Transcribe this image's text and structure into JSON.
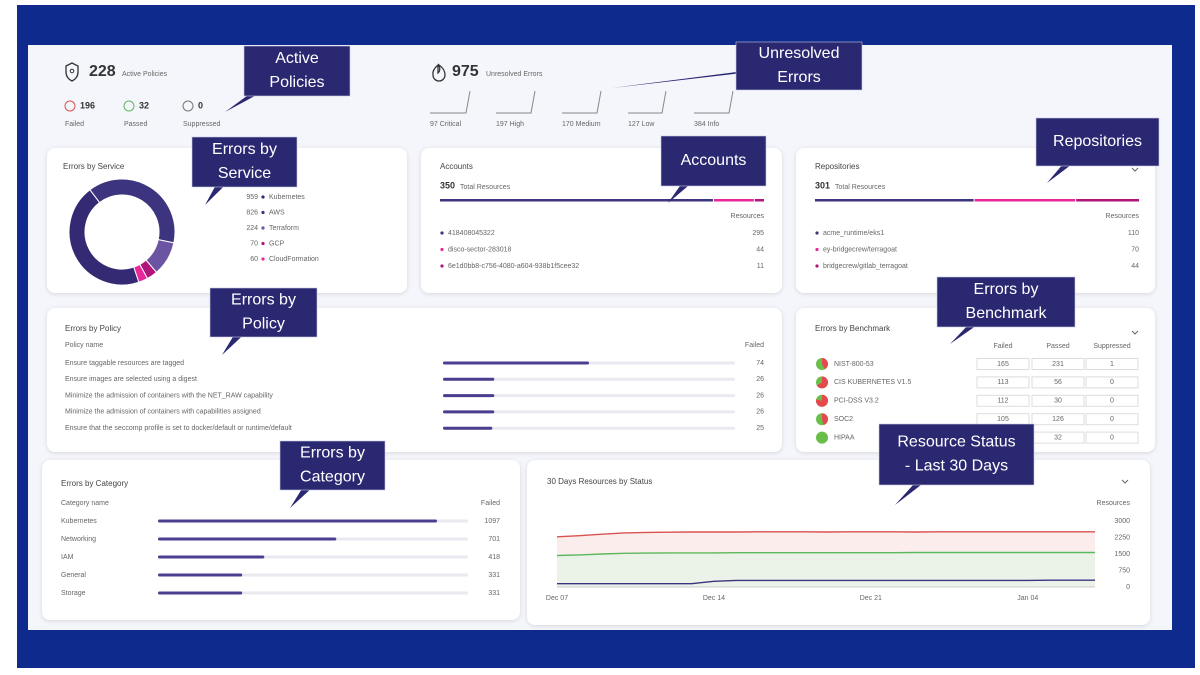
{
  "summary": {
    "policies": {
      "value": 228,
      "label": "Active Policies",
      "stats": [
        {
          "value": 196,
          "label": "Failed"
        },
        {
          "value": 32,
          "label": "Passed"
        },
        {
          "value": 0,
          "label": "Suppressed"
        }
      ]
    },
    "errors": {
      "value": 975,
      "label": "Unresolved Errors",
      "levels": [
        "97 Critical",
        "197 High",
        "170 Medium",
        "127 Low",
        "384 Info"
      ]
    }
  },
  "services": {
    "title": "Errors by Service",
    "items": [
      {
        "value": 959,
        "label": "Kubernetes",
        "color": "#332a73"
      },
      {
        "value": 826,
        "label": "AWS",
        "color": "#3d347f"
      },
      {
        "value": 224,
        "label": "Terraform",
        "color": "#6b55a3"
      },
      {
        "value": 70,
        "label": "GCP",
        "color": "#b0167a"
      },
      {
        "value": 60,
        "label": "CloudFormation",
        "color": "#e8279b"
      }
    ]
  },
  "accounts": {
    "title": "Accounts",
    "total": 350,
    "total_label": "Total Resources",
    "column": "Resources",
    "rows": [
      {
        "name": "418408045322",
        "value": 295,
        "color": "#3d347f"
      },
      {
        "name": "disco-sector-283018",
        "value": 44,
        "color": "#e8279b"
      },
      {
        "name": "6e1d0bb8-c756-4080-a604-938b1f5cee32",
        "value": 11,
        "color": "#b0167a"
      }
    ]
  },
  "repositories": {
    "title": "Repositories",
    "total": 301,
    "total_label": "Total Resources",
    "column": "Resources",
    "rows": [
      {
        "name": "acme_runtime/eks1",
        "value": 110,
        "color": "#3d347f"
      },
      {
        "name": "ey-bridgecrew/terragoat",
        "value": 70,
        "color": "#e8279b"
      },
      {
        "name": "bridgecrew/gitlab_terragoat",
        "value": 44,
        "color": "#b0167a"
      }
    ]
  },
  "policies": {
    "title": "Errors by Policy",
    "column_name": "Policy name",
    "column_value": "Failed",
    "rows": [
      {
        "name": "Ensure taggable resources are tagged",
        "value": 74
      },
      {
        "name": "Ensure images are selected using a digest",
        "value": 26
      },
      {
        "name": "Minimize the admission of containers with the NET_RAW capability",
        "value": 26
      },
      {
        "name": "Minimize the admission of containers with capabilities assigned",
        "value": 26
      },
      {
        "name": "Ensure that the seccomp profile is set to docker/default or runtime/default",
        "value": 25
      }
    ]
  },
  "benchmarks": {
    "title": "Errors by Benchmark",
    "columns": [
      "Failed",
      "Passed",
      "Suppressed"
    ],
    "rows": [
      {
        "name": "NIST-800-53",
        "values": [
          165,
          231,
          1
        ]
      },
      {
        "name": "CIS KUBERNETES V1.5",
        "values": [
          113,
          56,
          0
        ]
      },
      {
        "name": "PCI-DSS V3.2",
        "values": [
          112,
          30,
          0
        ]
      },
      {
        "name": "SOC2",
        "values": [
          105,
          126,
          0
        ]
      },
      {
        "name": "HIPAA",
        "values": [
          null,
          32,
          0
        ]
      }
    ]
  },
  "categories": {
    "title": "Errors by Category",
    "column_name": "Category name",
    "column_value": "Failed",
    "rows": [
      {
        "name": "Kubernetes",
        "value": 1097
      },
      {
        "name": "Networking",
        "value": 701
      },
      {
        "name": "IAM",
        "value": 418
      },
      {
        "name": "General",
        "value": 331
      },
      {
        "name": "Storage",
        "value": 331
      }
    ]
  },
  "chart_data": {
    "type": "line",
    "title": "30 Days Resources by Status",
    "y_label": "Resources",
    "categories": [
      "Dec 07",
      null,
      null,
      null,
      null,
      null,
      null,
      "Dec 14",
      null,
      null,
      null,
      null,
      null,
      null,
      "Dec 21",
      null,
      null,
      null,
      null,
      null,
      null,
      "Jan 04",
      null,
      null,
      null
    ],
    "ylim": [
      0,
      3000
    ],
    "yticks": [
      0,
      750,
      1500,
      2250,
      3000
    ],
    "series": [
      {
        "color": "#d9534f",
        "fill": "#fbe9e9",
        "values": [
          2280,
          2330,
          2400,
          2460,
          2480,
          2490,
          2500,
          2500,
          2500,
          2510,
          2510,
          2510,
          2500,
          2510,
          2510,
          2510,
          2500,
          2510,
          2510,
          2510,
          2510,
          2510,
          2510,
          2510,
          2510
        ]
      },
      {
        "color": "#5cb85c",
        "fill": "#e6f4e6",
        "values": [
          1430,
          1460,
          1500,
          1530,
          1540,
          1550,
          1550,
          1550,
          1560,
          1560,
          1560,
          1560,
          1560,
          1560,
          1560,
          1560,
          1570,
          1570,
          1570,
          1570,
          1570,
          1570,
          1570,
          1570,
          1570
        ]
      },
      {
        "color": "#3d347f",
        "values": [
          150,
          150,
          150,
          150,
          150,
          150,
          150,
          260,
          300,
          300,
          300,
          300,
          300,
          300,
          300,
          300,
          300,
          300,
          300,
          300,
          300,
          300,
          310,
          310,
          310
        ]
      }
    ]
  },
  "callouts": [
    {
      "lines": [
        "Active",
        "Policies"
      ]
    },
    {
      "lines": [
        "Unresolved",
        "Errors"
      ]
    },
    {
      "lines": [
        "Errors by",
        "Service"
      ]
    },
    {
      "lines": [
        "Accounts"
      ]
    },
    {
      "lines": [
        "Repositories"
      ]
    },
    {
      "lines": [
        "Errors by",
        "Policy"
      ]
    },
    {
      "lines": [
        "Errors by",
        "Benchmark"
      ]
    },
    {
      "lines": [
        "Errors by",
        "Category"
      ]
    },
    {
      "lines": [
        "Resource Status",
        "- Last 30 Days"
      ]
    }
  ]
}
